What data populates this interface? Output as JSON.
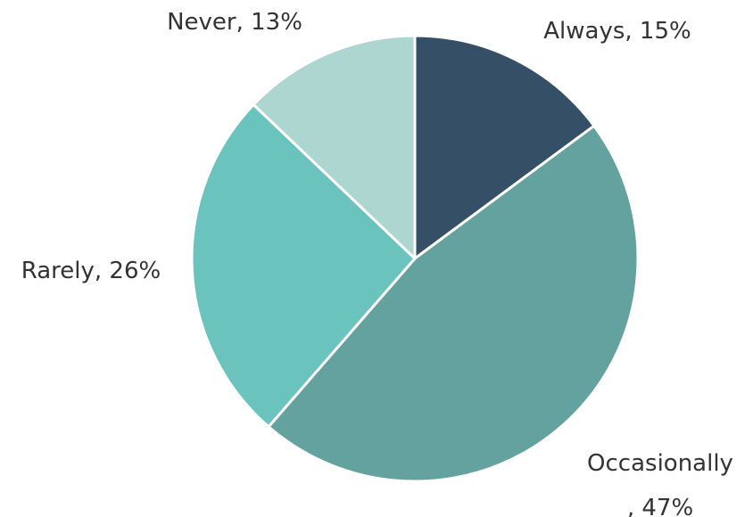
{
  "chart_data": {
    "type": "pie",
    "start_angle_deg": 0,
    "direction": "clockwise",
    "slice_border_color": "#ffffff",
    "slices": [
      {
        "label": "Always",
        "value": 15,
        "color": "#354f66",
        "display_lines": [
          "Always, 15%"
        ]
      },
      {
        "label": "Occasionally",
        "value": 47,
        "color": "#63a29e",
        "display_lines": [
          "Occasionally",
          ", 47%"
        ]
      },
      {
        "label": "Rarely",
        "value": 26,
        "color": "#6bc3bd",
        "display_lines": [
          "Rarely, 26%"
        ]
      },
      {
        "label": "Never",
        "value": 13,
        "color": "#acd6cf",
        "display_lines": [
          "Never, 13%"
        ]
      }
    ]
  }
}
